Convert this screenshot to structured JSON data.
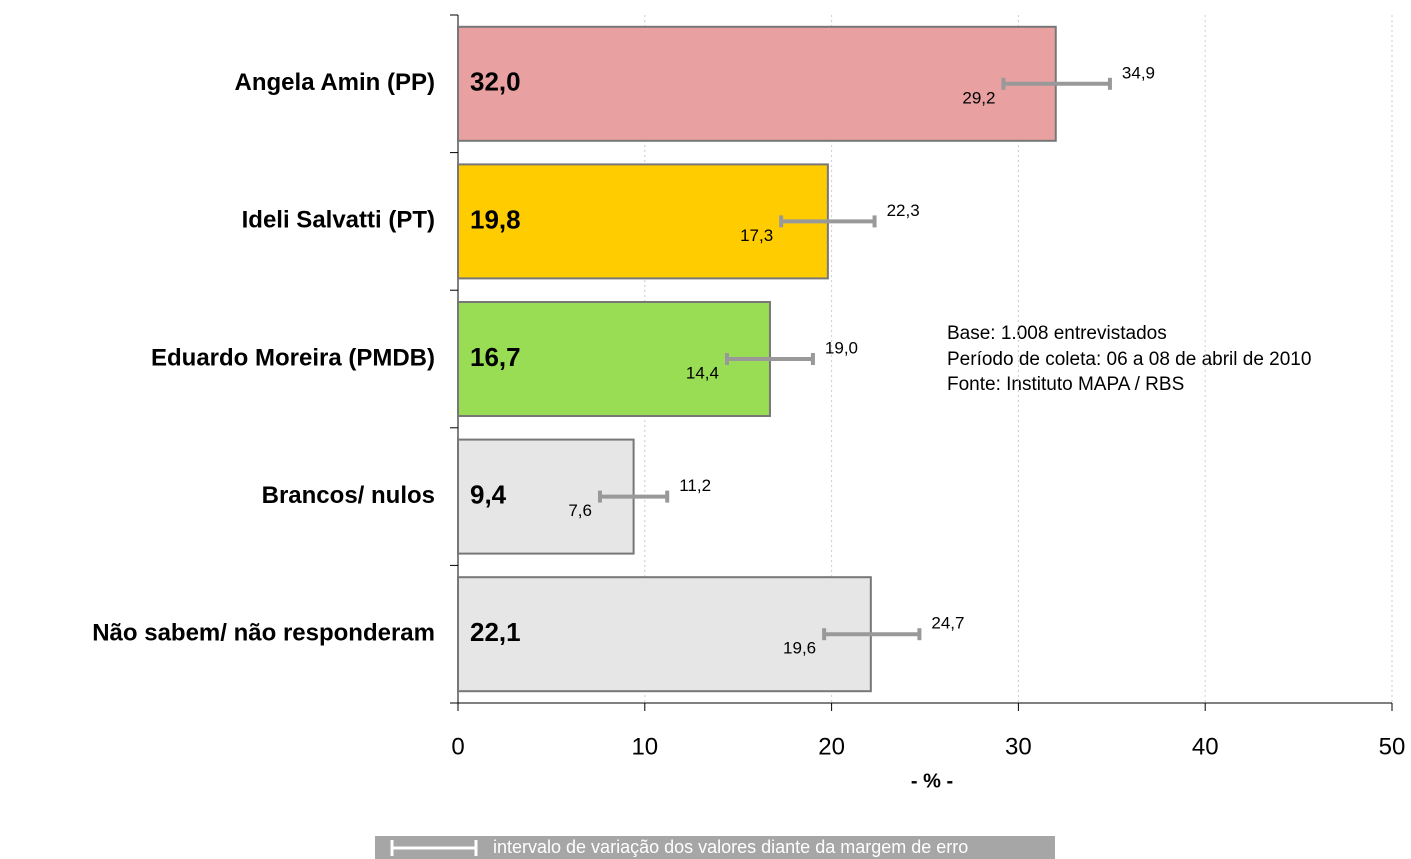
{
  "chart_data": {
    "type": "bar",
    "orientation": "horizontal",
    "categories": [
      "Angela Amin (PP)",
      "Ideli Salvatti (PT)",
      "Eduardo Moreira (PMDB)",
      "Brancos/ nulos",
      "Não sabem/ não responderam"
    ],
    "values": [
      32.0,
      19.8,
      16.7,
      9.4,
      22.1
    ],
    "value_labels": [
      "32,0",
      "19,8",
      "16,7",
      "9,4",
      "22,1"
    ],
    "colors": [
      "#e8a0a0",
      "#ffcc00",
      "#99dd55",
      "#e6e6e6",
      "#e6e6e6"
    ],
    "lows": [
      29.2,
      17.3,
      14.4,
      7.6,
      19.6
    ],
    "low_labels": [
      "29,2",
      "17,3",
      "14,4",
      "7,6",
      "19,6"
    ],
    "highs": [
      34.9,
      22.3,
      19.0,
      11.2,
      24.7
    ],
    "high_labels": [
      "34,9",
      "22,3",
      "19,0",
      "11,2",
      "24,7"
    ],
    "xlim": [
      0,
      50
    ],
    "xticks": [
      0,
      10,
      20,
      30,
      40,
      50
    ],
    "grid": true,
    "xlabel": "- % -",
    "annotations": [
      "Base: 1.008 entrevistados",
      "Período de coleta: 06 a 08 de abril de 2010",
      "Fonte: Instituto MAPA / RBS"
    ],
    "legend": "intervalo de variação dos valores diante da margem de erro"
  }
}
